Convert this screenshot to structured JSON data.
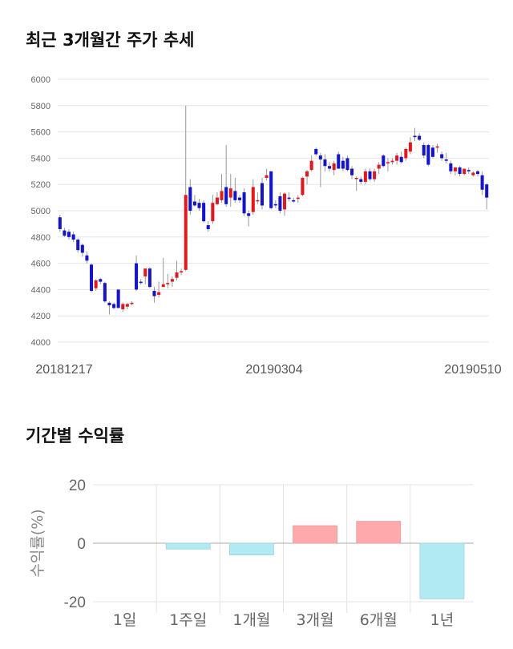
{
  "sections": {
    "price_title": "최근 3개월간 주가 추세",
    "return_title": "기간별 수익률"
  },
  "colors": {
    "up": "#e0191d",
    "down": "#1414c8",
    "wick": "#999999",
    "pos_bar": "#ffaaaa",
    "neg_bar": "#b2eaf4"
  },
  "chart_data": [
    {
      "type": "candlestick",
      "title": "최근 3개월간 주가 추세",
      "ylim": [
        4000,
        6000
      ],
      "yticks": [
        "6000",
        "5800",
        "5600",
        "5400",
        "5200",
        "5000",
        "4800",
        "4600",
        "4400",
        "4200",
        "4000"
      ],
      "xticks": [
        "20181217",
        "20190304",
        "20190510"
      ],
      "grid": true,
      "candles": [
        {
          "o": 4950,
          "h": 4970,
          "l": 4840,
          "c": 4860
        },
        {
          "o": 4850,
          "h": 4870,
          "l": 4800,
          "c": 4810
        },
        {
          "o": 4840,
          "h": 4860,
          "l": 4780,
          "c": 4800
        },
        {
          "o": 4820,
          "h": 4840,
          "l": 4760,
          "c": 4780
        },
        {
          "o": 4780,
          "h": 4790,
          "l": 4680,
          "c": 4700
        },
        {
          "o": 4740,
          "h": 4750,
          "l": 4650,
          "c": 4680
        },
        {
          "o": 4660,
          "h": 4690,
          "l": 4600,
          "c": 4620
        },
        {
          "o": 4590,
          "h": 4600,
          "l": 4380,
          "c": 4390
        },
        {
          "o": 4410,
          "h": 4480,
          "l": 4390,
          "c": 4470
        },
        {
          "o": 4480,
          "h": 4490,
          "l": 4440,
          "c": 4460
        },
        {
          "o": 4450,
          "h": 4460,
          "l": 4300,
          "c": 4310
        },
        {
          "o": 4300,
          "h": 4310,
          "l": 4210,
          "c": 4280
        },
        {
          "o": 4290,
          "h": 4300,
          "l": 4250,
          "c": 4260
        },
        {
          "o": 4400,
          "h": 4400,
          "l": 4260,
          "c": 4260
        },
        {
          "o": 4250,
          "h": 4300,
          "l": 4230,
          "c": 4290
        },
        {
          "o": 4270,
          "h": 4300,
          "l": 4250,
          "c": 4290
        },
        {
          "o": 4290,
          "h": 4310,
          "l": 4280,
          "c": 4300
        },
        {
          "o": 4600,
          "h": 4660,
          "l": 4390,
          "c": 4400
        },
        {
          "o": 4460,
          "h": 4480,
          "l": 4440,
          "c": 4450
        },
        {
          "o": 4500,
          "h": 4560,
          "l": 4440,
          "c": 4560
        },
        {
          "o": 4560,
          "h": 4570,
          "l": 4410,
          "c": 4420
        },
        {
          "o": 4390,
          "h": 4420,
          "l": 4300,
          "c": 4350
        },
        {
          "o": 4360,
          "h": 4460,
          "l": 4340,
          "c": 4380
        },
        {
          "o": 4420,
          "h": 4640,
          "l": 4420,
          "c": 4440
        },
        {
          "o": 4440,
          "h": 4520,
          "l": 4410,
          "c": 4450
        },
        {
          "o": 4460,
          "h": 4500,
          "l": 4420,
          "c": 4480
        },
        {
          "o": 4490,
          "h": 4620,
          "l": 4470,
          "c": 4530
        },
        {
          "o": 4530,
          "h": 4560,
          "l": 4510,
          "c": 4540
        },
        {
          "o": 4550,
          "h": 5800,
          "l": 4540,
          "c": 5120
        },
        {
          "o": 5180,
          "h": 5240,
          "l": 4970,
          "c": 5000
        },
        {
          "o": 5070,
          "h": 5120,
          "l": 5030,
          "c": 5040
        },
        {
          "o": 5060,
          "h": 5090,
          "l": 5000,
          "c": 5020
        },
        {
          "o": 5060,
          "h": 5080,
          "l": 4910,
          "c": 4920
        },
        {
          "o": 4890,
          "h": 4920,
          "l": 4840,
          "c": 4860
        },
        {
          "o": 4920,
          "h": 5120,
          "l": 4900,
          "c": 5060
        },
        {
          "o": 5050,
          "h": 5140,
          "l": 5040,
          "c": 5100
        },
        {
          "o": 5080,
          "h": 5280,
          "l": 5060,
          "c": 5150
        },
        {
          "o": 5180,
          "h": 5500,
          "l": 5030,
          "c": 5050
        },
        {
          "o": 5100,
          "h": 5280,
          "l": 5030,
          "c": 5170
        },
        {
          "o": 5150,
          "h": 5250,
          "l": 5060,
          "c": 5080
        },
        {
          "o": 5100,
          "h": 5120,
          "l": 5060,
          "c": 5080
        },
        {
          "o": 5140,
          "h": 5170,
          "l": 4960,
          "c": 4980
        },
        {
          "o": 4980,
          "h": 5000,
          "l": 4880,
          "c": 4960
        },
        {
          "o": 4990,
          "h": 5240,
          "l": 4970,
          "c": 5180
        },
        {
          "o": 5080,
          "h": 5140,
          "l": 5050,
          "c": 5080
        },
        {
          "o": 5210,
          "h": 5250,
          "l": 5010,
          "c": 5040
        },
        {
          "o": 5250,
          "h": 5320,
          "l": 5230,
          "c": 5270
        },
        {
          "o": 5300,
          "h": 5300,
          "l": 5010,
          "c": 5020
        },
        {
          "o": 5050,
          "h": 5080,
          "l": 5020,
          "c": 5040
        },
        {
          "o": 5110,
          "h": 5140,
          "l": 4980,
          "c": 5000
        },
        {
          "o": 5010,
          "h": 5140,
          "l": 4960,
          "c": 5130
        },
        {
          "o": 5100,
          "h": 5140,
          "l": 5070,
          "c": 5090
        },
        {
          "o": 5080,
          "h": 5100,
          "l": 5060,
          "c": 5070
        },
        {
          "o": 5090,
          "h": 5120,
          "l": 5060,
          "c": 5100
        },
        {
          "o": 5120,
          "h": 5260,
          "l": 5110,
          "c": 5250
        },
        {
          "o": 5260,
          "h": 5310,
          "l": 5200,
          "c": 5300
        },
        {
          "o": 5310,
          "h": 5420,
          "l": 5300,
          "c": 5380
        },
        {
          "o": 5470,
          "h": 5480,
          "l": 5420,
          "c": 5430
        },
        {
          "o": 5420,
          "h": 5440,
          "l": 5180,
          "c": 5390
        },
        {
          "o": 5390,
          "h": 5430,
          "l": 5300,
          "c": 5340
        },
        {
          "o": 5340,
          "h": 5370,
          "l": 5300,
          "c": 5320
        },
        {
          "o": 5310,
          "h": 5380,
          "l": 5270,
          "c": 5360
        },
        {
          "o": 5430,
          "h": 5450,
          "l": 5320,
          "c": 5320
        },
        {
          "o": 5380,
          "h": 5410,
          "l": 5300,
          "c": 5320
        },
        {
          "o": 5400,
          "h": 5420,
          "l": 5300,
          "c": 5310
        },
        {
          "o": 5320,
          "h": 5340,
          "l": 5240,
          "c": 5270
        },
        {
          "o": 5250,
          "h": 5260,
          "l": 5150,
          "c": 5250
        },
        {
          "o": 5240,
          "h": 5260,
          "l": 5200,
          "c": 5220
        },
        {
          "o": 5220,
          "h": 5320,
          "l": 5200,
          "c": 5300
        },
        {
          "o": 5300,
          "h": 5320,
          "l": 5230,
          "c": 5240
        },
        {
          "o": 5240,
          "h": 5320,
          "l": 5220,
          "c": 5300
        },
        {
          "o": 5320,
          "h": 5370,
          "l": 5280,
          "c": 5350
        },
        {
          "o": 5420,
          "h": 5430,
          "l": 5330,
          "c": 5340
        },
        {
          "o": 5360,
          "h": 5400,
          "l": 5300,
          "c": 5370
        },
        {
          "o": 5370,
          "h": 5400,
          "l": 5350,
          "c": 5380
        },
        {
          "o": 5380,
          "h": 5440,
          "l": 5350,
          "c": 5420
        },
        {
          "o": 5410,
          "h": 5450,
          "l": 5360,
          "c": 5370
        },
        {
          "o": 5400,
          "h": 5480,
          "l": 5380,
          "c": 5470
        },
        {
          "o": 5450,
          "h": 5560,
          "l": 5430,
          "c": 5520
        },
        {
          "o": 5570,
          "h": 5630,
          "l": 5530,
          "c": 5560
        },
        {
          "o": 5570,
          "h": 5590,
          "l": 5530,
          "c": 5540
        },
        {
          "o": 5500,
          "h": 5520,
          "l": 5400,
          "c": 5420
        },
        {
          "o": 5500,
          "h": 5510,
          "l": 5340,
          "c": 5350
        },
        {
          "o": 5480,
          "h": 5500,
          "l": 5400,
          "c": 5410
        },
        {
          "o": 5480,
          "h": 5510,
          "l": 5440,
          "c": 5490
        },
        {
          "o": 5430,
          "h": 5450,
          "l": 5380,
          "c": 5400
        },
        {
          "o": 5390,
          "h": 5440,
          "l": 5360,
          "c": 5380
        },
        {
          "o": 5360,
          "h": 5380,
          "l": 5280,
          "c": 5300
        },
        {
          "o": 5300,
          "h": 5330,
          "l": 5270,
          "c": 5330
        },
        {
          "o": 5330,
          "h": 5340,
          "l": 5260,
          "c": 5280
        },
        {
          "o": 5280,
          "h": 5320,
          "l": 5270,
          "c": 5320
        },
        {
          "o": 5310,
          "h": 5330,
          "l": 5280,
          "c": 5300
        },
        {
          "o": 5270,
          "h": 5300,
          "l": 5260,
          "c": 5290
        },
        {
          "o": 5300,
          "h": 5310,
          "l": 5260,
          "c": 5280
        },
        {
          "o": 5270,
          "h": 5300,
          "l": 5120,
          "c": 5160
        },
        {
          "o": 5200,
          "h": 5210,
          "l": 5010,
          "c": 5100
        }
      ]
    },
    {
      "type": "bar",
      "title": "기간별 수익률",
      "ylabel": "수익률(%)",
      "ylim": [
        -20,
        20
      ],
      "yticks": [
        "20",
        "0",
        "-20"
      ],
      "categories": [
        "1일",
        "1주일",
        "1개월",
        "3개월",
        "6개월",
        "1년"
      ],
      "values": [
        0,
        -2,
        -4,
        6,
        7.5,
        -19
      ]
    }
  ]
}
